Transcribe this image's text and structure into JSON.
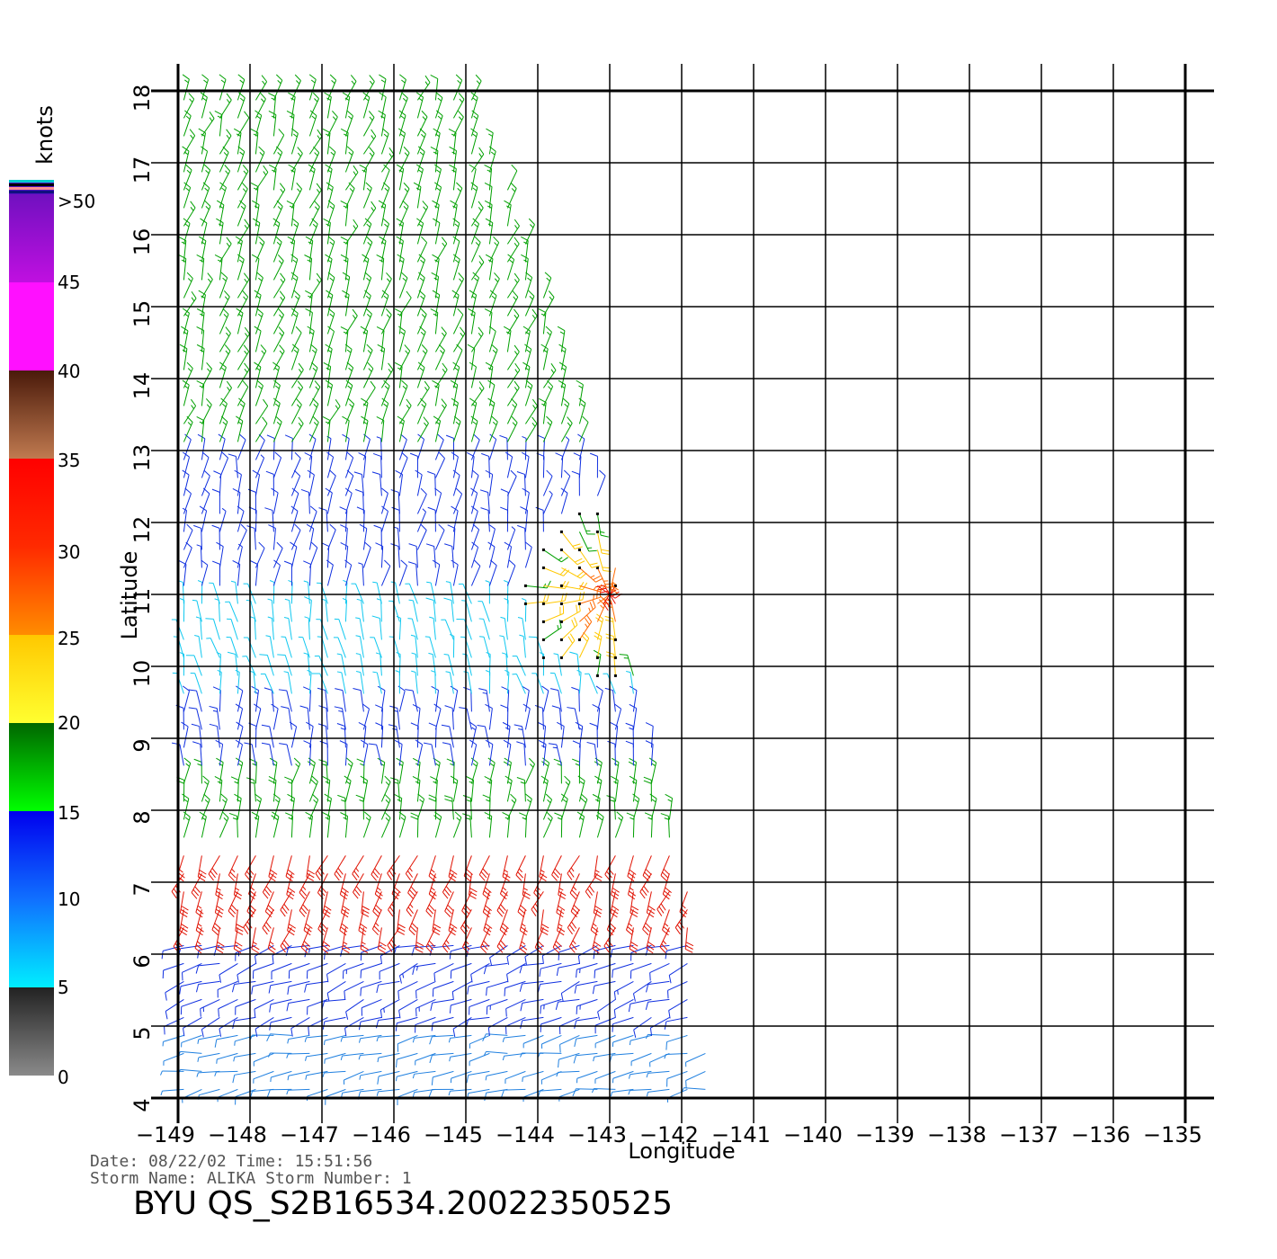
{
  "chart_data": {
    "type": "scatter",
    "subtype": "wind-barb-map",
    "xlabel": "Longitude",
    "ylabel": "Latitude",
    "xlim": [
      -149,
      -135
    ],
    "ylim": [
      4,
      18
    ],
    "x_ticks": [
      -149,
      -148,
      -147,
      -146,
      -145,
      -144,
      -143,
      -142,
      -141,
      -140,
      -139,
      -138,
      -137,
      -136,
      -135
    ],
    "y_ticks": [
      4,
      5,
      6,
      7,
      8,
      9,
      10,
      11,
      12,
      13,
      14,
      15,
      16,
      17,
      18
    ],
    "x_tick_labels": [
      "−149",
      "−148",
      "−147",
      "−146",
      "−145",
      "−144",
      "−143",
      "−142",
      "−141",
      "−140",
      "−139",
      "−138",
      "−137",
      "−136",
      "−135"
    ],
    "y_tick_labels": [
      "4",
      "5",
      "6",
      "7",
      "8",
      "9",
      "10",
      "11",
      "12",
      "13",
      "14",
      "15",
      "16",
      "17",
      "18"
    ],
    "grid": true,
    "swath": {
      "west_edge_lon": -149,
      "east_edge": [
        {
          "lat": 4.0,
          "lon": -141.6
        },
        {
          "lat": 7.0,
          "lon": -141.9
        },
        {
          "lat": 10.0,
          "lon": -142.7
        },
        {
          "lat": 12.0,
          "lon": -143.0
        },
        {
          "lat": 14.0,
          "lon": -143.5
        },
        {
          "lat": 16.0,
          "lon": -144.2
        },
        {
          "lat": 18.0,
          "lon": -144.9
        }
      ]
    },
    "wind_regions": [
      {
        "lat_range": [
          13.0,
          18.0
        ],
        "speed": 17,
        "dir": 70,
        "color": "green"
      },
      {
        "lat_range": [
          11.0,
          13.0
        ],
        "speed": 12,
        "dir": 80,
        "color": "blue"
      },
      {
        "lat_range": [
          9.5,
          11.0
        ],
        "speed": 8,
        "dir": 100,
        "color": "cyan"
      },
      {
        "lat_range": [
          8.5,
          9.5
        ],
        "speed": 13,
        "dir": 90,
        "color": "blue"
      },
      {
        "lat_range": [
          7.5,
          8.5
        ],
        "speed": 18,
        "dir": 80,
        "color": "green"
      },
      {
        "lat_range": [
          6.2,
          7.5
        ],
        "speed": 31,
        "dir": 250,
        "color": "red"
      },
      {
        "lat_range": [
          5.0,
          6.2
        ],
        "speed": 13,
        "dir": 200,
        "color": "blue"
      },
      {
        "lat_range": [
          4.0,
          5.0
        ],
        "speed": 9,
        "dir": 190,
        "color": "lightblue"
      }
    ],
    "storm_core": {
      "lat": 11.0,
      "lon": -143.0,
      "max_speed": 33
    }
  },
  "colorbar": {
    "units": "knots",
    "labels": [
      ">50",
      "45",
      "40",
      "35",
      "30",
      "25",
      "20",
      "15",
      "10",
      "5",
      "0"
    ],
    "segments": [
      {
        "from": 0,
        "to": 5,
        "top": "#222222",
        "bottom": "#8a8a8a"
      },
      {
        "from": 5,
        "to": 10,
        "top": "#1070ff",
        "bottom": "#00eeff"
      },
      {
        "from": 10,
        "to": 15,
        "top": "#0000ee",
        "bottom": "#1070ff"
      },
      {
        "from": 15,
        "to": 20,
        "top": "#006600",
        "bottom": "#00ff00"
      },
      {
        "from": 20,
        "to": 25,
        "top": "#ffc800",
        "bottom": "#ffff30"
      },
      {
        "from": 25,
        "to": 30,
        "top": "#ff2a00",
        "bottom": "#ff8c00"
      },
      {
        "from": 30,
        "to": 35,
        "top": "#ff0000",
        "bottom": "#ff2a00"
      },
      {
        "from": 35,
        "to": 40,
        "top": "#4a1a0a",
        "bottom": "#c07a50"
      },
      {
        "from": 40,
        "to": 45,
        "top": "#ff10ff",
        "bottom": "#ff10ff"
      },
      {
        "from": 45,
        "to": 50,
        "top": "#7010c0",
        "bottom": "#c010e0"
      },
      {
        "from": 50,
        "to": 52,
        "top": "#5010c0",
        "bottom": "#5010c0"
      }
    ]
  },
  "meta": {
    "line1": "Date: 08/22/02   Time: 15:51:56",
    "line2": "Storm Name: ALIKA   Storm Number: 1",
    "title": "BYU QS_S2B16534.20022350525"
  }
}
